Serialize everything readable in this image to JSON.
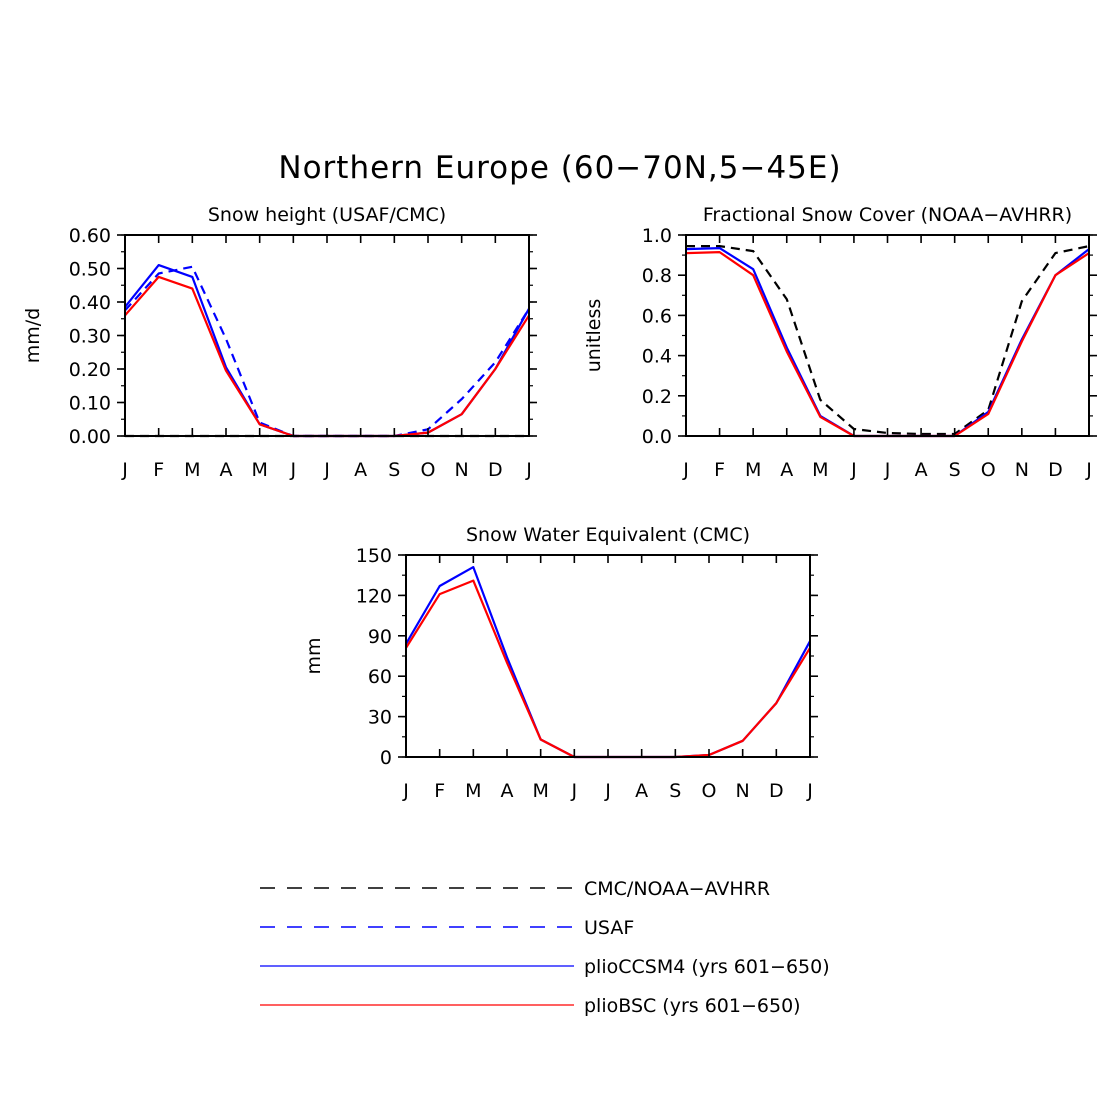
{
  "figure": {
    "title": "Northern Europe (60−70N,5−45E)"
  },
  "months": [
    "J",
    "F",
    "M",
    "A",
    "M",
    "J",
    "J",
    "A",
    "S",
    "O",
    "N",
    "D",
    "J"
  ],
  "colors": {
    "obs_black": "#000000",
    "obs_blue": "#0000ff",
    "model_ccsm4": "#0000ff",
    "model_bsc": "#ff0000"
  },
  "legend": {
    "items": [
      {
        "label": "CMC/NOAA−AVHRR",
        "color": "#000000",
        "dash": true
      },
      {
        "label": "USAF",
        "color": "#0000ff",
        "dash": true
      },
      {
        "label": "plioCCSM4 (yrs 601−650)",
        "color": "#0000ff",
        "dash": false
      },
      {
        "label": "plioBSC (yrs 601−650)",
        "color": "#ff0000",
        "dash": false
      }
    ]
  },
  "chart_data": [
    {
      "type": "line",
      "title": "Snow height (USAF/CMC)",
      "ylabel": "mm/d",
      "ylim": [
        0,
        0.6
      ],
      "yticks": [
        "0.00",
        "0.10",
        "0.20",
        "0.30",
        "0.40",
        "0.50",
        "0.60"
      ],
      "yminor": 0.05,
      "x": [
        "J",
        "F",
        "M",
        "A",
        "M",
        "J",
        "J",
        "A",
        "S",
        "O",
        "N",
        "D",
        "J"
      ],
      "series": [
        {
          "key": "obs_black",
          "dash": true,
          "values": [
            0.0,
            0.0,
            0.0,
            0.0,
            0.0,
            0.0,
            0.0,
            0.0,
            0.0,
            0.0,
            0.0,
            0.0,
            0.0
          ]
        },
        {
          "key": "obs_blue",
          "dash": true,
          "values": [
            0.375,
            0.485,
            0.505,
            0.29,
            0.04,
            0.0,
            0.0,
            0.0,
            0.0,
            0.02,
            0.11,
            0.22,
            0.38
          ]
        },
        {
          "key": "model_ccsm4",
          "dash": false,
          "values": [
            0.385,
            0.51,
            0.475,
            0.205,
            0.035,
            0.0,
            0.0,
            0.0,
            0.0,
            0.01,
            0.065,
            0.2,
            0.38
          ]
        },
        {
          "key": "model_bsc",
          "dash": false,
          "values": [
            0.36,
            0.475,
            0.44,
            0.195,
            0.035,
            0.0,
            0.0,
            0.0,
            0.0,
            0.01,
            0.065,
            0.2,
            0.36
          ]
        }
      ]
    },
    {
      "type": "line",
      "title": "Fractional Snow Cover (NOAA−AVHRR)",
      "ylabel": "unitless",
      "ylim": [
        0,
        1.0
      ],
      "yticks": [
        "0.0",
        "0.2",
        "0.4",
        "0.6",
        "0.8",
        "1.0"
      ],
      "yminor": 0.1,
      "x": [
        "J",
        "F",
        "M",
        "A",
        "M",
        "J",
        "J",
        "A",
        "S",
        "O",
        "N",
        "D",
        "J"
      ],
      "series": [
        {
          "key": "obs_black",
          "dash": true,
          "values": [
            0.945,
            0.945,
            0.92,
            0.68,
            0.18,
            0.035,
            0.015,
            0.01,
            0.01,
            0.13,
            0.67,
            0.91,
            0.945
          ]
        },
        {
          "key": "model_ccsm4",
          "dash": false,
          "values": [
            0.93,
            0.935,
            0.83,
            0.44,
            0.1,
            0.0,
            0.0,
            0.0,
            0.0,
            0.12,
            0.48,
            0.8,
            0.93
          ]
        },
        {
          "key": "model_bsc",
          "dash": false,
          "values": [
            0.91,
            0.915,
            0.8,
            0.42,
            0.095,
            0.0,
            0.0,
            0.0,
            0.0,
            0.11,
            0.47,
            0.8,
            0.91
          ]
        }
      ]
    },
    {
      "type": "line",
      "title": "Snow Water Equivalent (CMC)",
      "ylabel": "mm",
      "ylim": [
        0,
        150
      ],
      "yticks": [
        "0",
        "30",
        "60",
        "90",
        "120",
        "150"
      ],
      "yminor": 15,
      "x": [
        "J",
        "F",
        "M",
        "A",
        "M",
        "J",
        "J",
        "A",
        "S",
        "O",
        "N",
        "D",
        "J"
      ],
      "series": [
        {
          "key": "model_ccsm4",
          "dash": false,
          "values": [
            84,
            127,
            141,
            74,
            13,
            0,
            0,
            0,
            0,
            1.5,
            12,
            40,
            86
          ]
        },
        {
          "key": "model_bsc",
          "dash": false,
          "values": [
            81,
            121,
            131,
            70,
            13,
            0,
            0,
            0,
            0,
            1.5,
            12,
            40,
            81
          ]
        }
      ]
    }
  ]
}
